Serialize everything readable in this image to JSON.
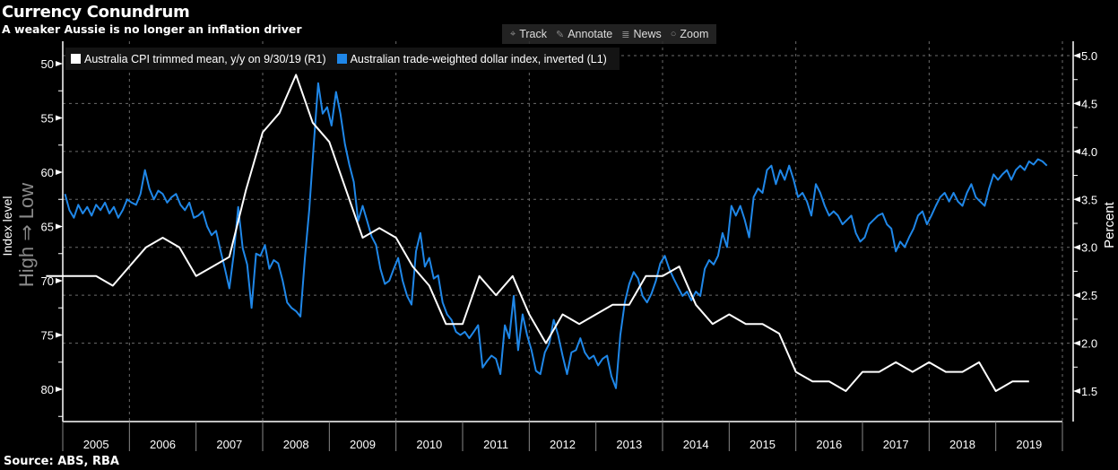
{
  "header": {
    "title": "Currency Conundrum",
    "subtitle": "A weaker Aussie is no longer an inflation driver"
  },
  "footer": {
    "source": "Source: ABS, RBA"
  },
  "toolbar": {
    "items": [
      {
        "label": "Track",
        "icon": "crosshair-icon"
      },
      {
        "label": "Annotate",
        "icon": "pencil-icon"
      },
      {
        "label": "News",
        "icon": "news-icon"
      },
      {
        "label": "Zoom",
        "icon": "magnifier-icon"
      }
    ]
  },
  "colors": {
    "background": "#000000",
    "cpi": "#ffffff",
    "twi": "#1f87e8",
    "grid": "#6b6b6b"
  },
  "chart_data": {
    "type": "line",
    "title": "Currency Conundrum",
    "subtitle": "A weaker Aussie is no longer an inflation driver",
    "legend_position": "top-left",
    "grid": true,
    "x_axis": {
      "tick_labels": [
        "2005",
        "2006",
        "2007",
        "2008",
        "2009",
        "2010",
        "2011",
        "2012",
        "2013",
        "2014",
        "2015",
        "2016",
        "2017",
        "2018",
        "2019"
      ],
      "range": [
        2005,
        2020
      ]
    },
    "left_axis": {
      "label": "Index level",
      "annotation": "High ⇒ Low",
      "inverted": true,
      "range": [
        50,
        82.5
      ],
      "ticks": [
        "50",
        "55",
        "60",
        "65",
        "70",
        "75",
        "80"
      ]
    },
    "right_axis": {
      "label": "Percent",
      "range": [
        1.2,
        5.1
      ],
      "ticks": [
        "1.5",
        "2.0",
        "2.5",
        "3.0",
        "3.5",
        "4.0",
        "4.5",
        "5.0"
      ]
    },
    "series": [
      {
        "name": "Australia CPI trimmed mean, y/y on 9/30/19 (R1)",
        "axis": "right",
        "frequency": "quarterly",
        "x": [
          "2004Q4",
          "2005Q1",
          "2005Q2",
          "2005Q3",
          "2005Q4",
          "2006Q1",
          "2006Q2",
          "2006Q3",
          "2006Q4",
          "2007Q1",
          "2007Q2",
          "2007Q3",
          "2007Q4",
          "2008Q1",
          "2008Q2",
          "2008Q3",
          "2008Q4",
          "2009Q1",
          "2009Q2",
          "2009Q3",
          "2009Q4",
          "2010Q1",
          "2010Q2",
          "2010Q3",
          "2010Q4",
          "2011Q1",
          "2011Q2",
          "2011Q3",
          "2011Q4",
          "2012Q1",
          "2012Q2",
          "2012Q3",
          "2012Q4",
          "2013Q1",
          "2013Q2",
          "2013Q3",
          "2013Q4",
          "2014Q1",
          "2014Q2",
          "2014Q3",
          "2014Q4",
          "2015Q1",
          "2015Q2",
          "2015Q3",
          "2015Q4",
          "2016Q1",
          "2016Q2",
          "2016Q3",
          "2016Q4",
          "2017Q1",
          "2017Q2",
          "2017Q3",
          "2017Q4",
          "2018Q1",
          "2018Q2",
          "2018Q3",
          "2018Q4",
          "2019Q1",
          "2019Q2",
          "2019Q3"
        ],
        "values": [
          2.7,
          2.7,
          2.7,
          2.7,
          2.6,
          2.8,
          3.0,
          3.1,
          3.0,
          2.7,
          2.8,
          2.9,
          3.6,
          4.2,
          4.4,
          4.8,
          4.3,
          4.1,
          3.6,
          3.1,
          3.2,
          3.1,
          2.8,
          2.6,
          2.2,
          2.2,
          2.7,
          2.5,
          2.7,
          2.3,
          2.0,
          2.3,
          2.2,
          2.3,
          2.4,
          2.4,
          2.7,
          2.7,
          2.8,
          2.4,
          2.2,
          2.3,
          2.2,
          2.2,
          2.1,
          1.7,
          1.6,
          1.6,
          1.5,
          1.7,
          1.7,
          1.8,
          1.7,
          1.8,
          1.7,
          1.7,
          1.8,
          1.5,
          1.6,
          1.6
        ]
      },
      {
        "name": "Australian trade-weighted dollar index, inverted (L1)",
        "axis": "left",
        "frequency": "evenly sampled within each year",
        "values_by_year": {
          "2005": [
            62.0,
            63.5,
            64.2,
            63.0,
            63.8,
            63.2,
            64.0,
            63.0,
            63.5,
            62.8,
            63.8,
            63.2,
            64.2,
            63.5,
            62.5
          ],
          "2006": [
            62.8,
            63.0,
            62.0,
            59.8,
            61.5,
            62.5,
            61.7,
            62.0,
            62.8,
            62.3,
            62.0,
            63.0,
            63.5,
            62.8,
            64.2
          ],
          "2007": [
            64.0,
            63.6,
            65.0,
            65.8,
            65.4,
            67.2,
            68.9,
            70.7,
            67.5,
            63.2,
            67.0,
            68.5,
            72.5,
            67.5,
            67.7
          ],
          "2008": [
            66.7,
            68.9,
            68.1,
            68.4,
            70.0,
            72.0,
            72.5,
            72.8,
            73.3,
            67.9,
            63.4,
            57.4,
            51.8,
            54.6,
            54.0
          ],
          "2009": [
            55.7,
            52.6,
            54.6,
            57.4,
            59.3,
            60.9,
            64.5,
            63.1,
            64.5,
            65.9,
            66.7,
            68.9,
            70.3,
            70.0,
            68.9
          ],
          "2010": [
            67.9,
            70.0,
            71.4,
            72.2,
            67.3,
            65.6,
            68.7,
            67.9,
            69.8,
            69.5,
            72.0,
            73.1,
            73.6,
            74.7,
            75.0
          ],
          "2011": [
            74.7,
            75.3,
            74.7,
            74.1,
            78.0,
            77.4,
            76.9,
            77.2,
            78.6,
            74.1,
            75.3,
            71.4,
            76.4,
            73.1,
            75.0
          ],
          "2012": [
            76.4,
            78.3,
            78.6,
            76.6,
            75.8,
            73.6,
            75.0,
            76.9,
            78.6,
            76.6,
            76.4,
            75.3,
            76.6,
            77.2,
            76.9
          ],
          "2013": [
            77.8,
            77.2,
            76.9,
            78.8,
            79.9,
            75.0,
            72.0,
            70.3,
            69.2,
            69.8,
            71.4,
            72.0,
            71.2,
            70.0,
            68.4
          ],
          "2014": [
            67.7,
            68.9,
            69.8,
            70.6,
            71.4,
            71.0,
            71.8,
            71.0,
            71.4,
            68.9,
            68.1,
            68.5,
            67.7,
            65.6,
            66.9
          ],
          "2015": [
            63.1,
            64.0,
            63.1,
            64.4,
            66.0,
            62.3,
            61.5,
            61.9,
            59.8,
            59.4,
            61.1,
            59.8,
            60.7,
            59.4,
            60.7
          ],
          "2016": [
            62.3,
            61.9,
            62.7,
            64.0,
            61.1,
            61.9,
            63.1,
            64.0,
            63.6,
            64.0,
            64.8,
            64.4,
            64.0,
            65.6,
            66.4
          ],
          "2017": [
            66.0,
            64.8,
            64.4,
            64.0,
            63.8,
            64.8,
            65.2,
            67.3,
            66.4,
            66.9,
            66.0,
            65.2,
            64.0,
            63.6,
            64.8
          ],
          "2018": [
            64.0,
            63.1,
            62.3,
            61.9,
            62.7,
            61.9,
            62.7,
            63.1,
            61.9,
            61.1,
            62.3,
            62.7,
            63.1,
            61.5,
            60.2
          ],
          "2019": [
            60.7,
            60.2,
            59.8,
            60.7,
            59.8,
            59.4,
            59.8,
            59.0,
            59.3,
            58.8,
            59.0,
            59.4
          ]
        }
      }
    ]
  }
}
